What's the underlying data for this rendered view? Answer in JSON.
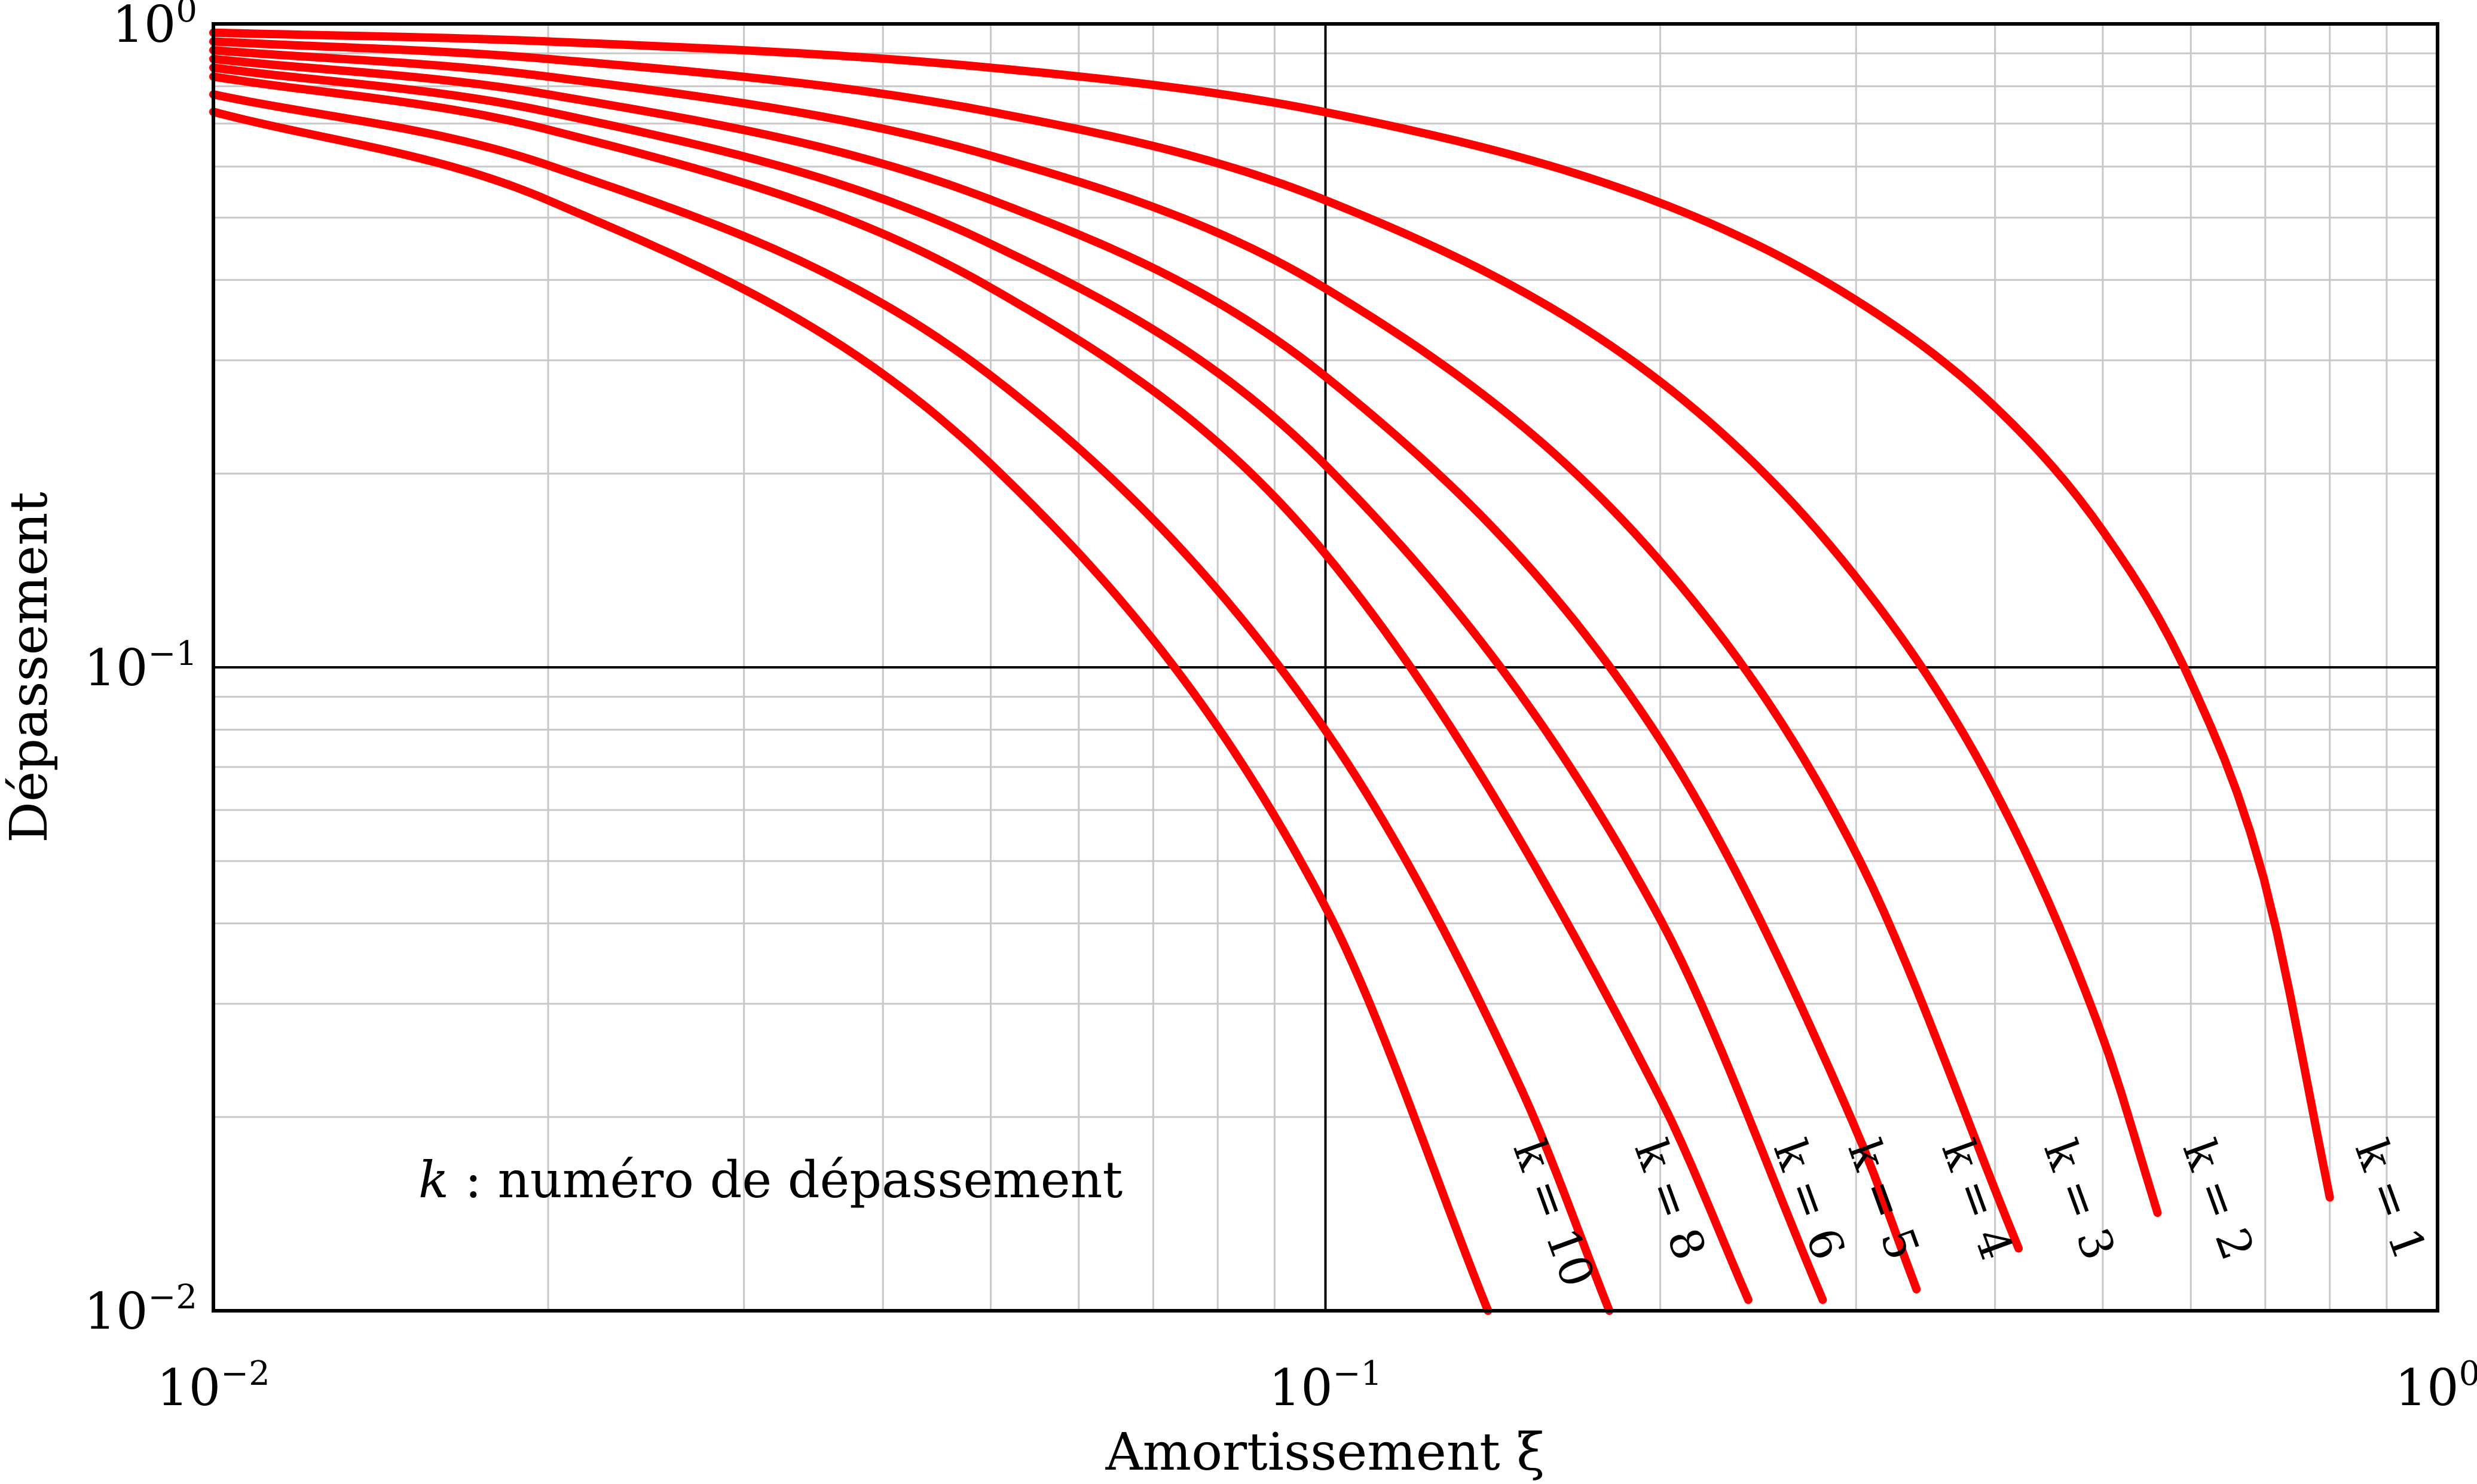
{
  "chart_data": {
    "type": "line",
    "xlabel": "Amortissement ξ",
    "ylabel": "Dépassement",
    "xscale": "log",
    "yscale": "log",
    "xlim": [
      0.01,
      1
    ],
    "ylim": [
      0.01,
      1
    ],
    "grid": true,
    "x_ticks": [
      {
        "base": "10",
        "exp": "−2",
        "value": 0.01
      },
      {
        "base": "10",
        "exp": "−1",
        "value": 0.1
      },
      {
        "base": "10",
        "exp": "0",
        "value": 1
      }
    ],
    "y_ticks": [
      {
        "base": "10",
        "exp": "0",
        "value": 1
      },
      {
        "base": "10",
        "exp": "−1",
        "value": 0.1
      },
      {
        "base": "10",
        "exp": "−2",
        "value": 0.01
      }
    ],
    "annotation": {
      "italic": "k",
      "text": " : numéro de dépassement"
    },
    "color": "#ff0000",
    "series": [
      {
        "k": 1,
        "label": "k = 1",
        "x": [
          0.01,
          0.02,
          0.05,
          0.1,
          0.2,
          0.3,
          0.4,
          0.5,
          0.6,
          0.7,
          0.8
        ],
        "y": [
          0.969,
          0.939,
          0.855,
          0.729,
          0.527,
          0.372,
          0.254,
          0.163,
          0.095,
          0.046,
          0.015
        ]
      },
      {
        "k": 2,
        "label": "k = 2",
        "x": [
          0.01,
          0.02,
          0.05,
          0.1,
          0.2,
          0.3,
          0.4,
          0.5,
          0.56
        ],
        "y": [
          0.939,
          0.882,
          0.73,
          0.532,
          0.278,
          0.138,
          0.0643,
          0.0266,
          0.0142
        ]
      },
      {
        "k": 3,
        "label": "k = 3",
        "x": [
          0.01,
          0.02,
          0.05,
          0.1,
          0.2,
          0.3,
          0.42
        ],
        "y": [
          0.91,
          0.828,
          0.624,
          0.388,
          0.146,
          0.0514,
          0.0125
        ]
      },
      {
        "k": 4,
        "label": "k = 4",
        "x": [
          0.01,
          0.02,
          0.05,
          0.1,
          0.2,
          0.3,
          0.34
        ],
        "y": [
          0.882,
          0.777,
          0.533,
          0.283,
          0.0771,
          0.0191,
          0.0108
        ]
      },
      {
        "k": 5,
        "label": "k = 5",
        "x": [
          0.01,
          0.02,
          0.05,
          0.1,
          0.2,
          0.28
        ],
        "y": [
          0.855,
          0.73,
          0.455,
          0.206,
          0.0406,
          0.0104
        ]
      },
      {
        "k": 6,
        "label": "k = 6",
        "x": [
          0.01,
          0.02,
          0.05,
          0.1,
          0.2,
          0.24
        ],
        "y": [
          0.828,
          0.685,
          0.389,
          0.15,
          0.0214,
          0.0104
        ]
      },
      {
        "k": 8,
        "label": "k = 8",
        "x": [
          0.01,
          0.02,
          0.05,
          0.1,
          0.15,
          0.18
        ],
        "y": [
          0.777,
          0.603,
          0.284,
          0.0798,
          0.0221,
          0.01
        ]
      },
      {
        "k": 10,
        "label": "k = 10",
        "x": [
          0.01,
          0.02,
          0.05,
          0.1,
          0.14
        ],
        "y": [
          0.73,
          0.532,
          0.207,
          0.0424,
          0.01
        ]
      }
    ]
  }
}
